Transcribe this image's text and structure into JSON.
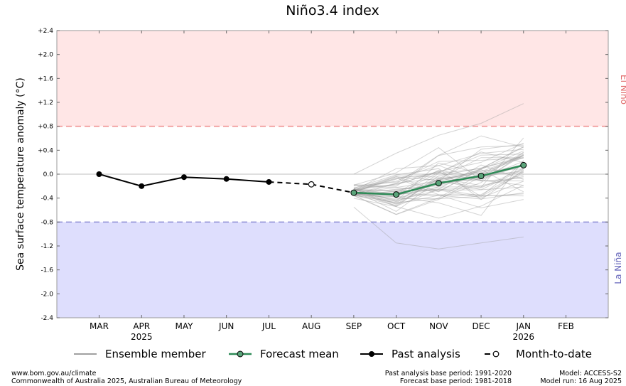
{
  "chart_data": {
    "type": "line",
    "title": "Niño3.4 index",
    "ylabel": "Sea surface temperature anomaly (°C)",
    "xlabel": "",
    "ylim": [
      -2.4,
      2.4
    ],
    "y_ticks": [
      "+2.4",
      "+2.0",
      "+1.6",
      "+1.2",
      "+0.8",
      "+0.4",
      "0.0",
      "-0.4",
      "-0.8",
      "-1.2",
      "-1.6",
      "-2.0",
      "-2.4"
    ],
    "categories": [
      "MAR",
      "APR",
      "MAY",
      "JUN",
      "JUL",
      "AUG",
      "SEP",
      "OCT",
      "NOV",
      "DEC",
      "JAN",
      "FEB"
    ],
    "year_labels": [
      {
        "month": "APR",
        "year": "2025"
      },
      {
        "month": "JAN",
        "year": "2026"
      }
    ],
    "thresholds": {
      "el_nino": 0.8,
      "la_nina": -0.8
    },
    "region_labels": {
      "el_nino": "El Niño",
      "la_nina": "La Niña"
    },
    "colors": {
      "el_nino_fill": "#ffe6e6",
      "la_nina_fill": "#dedefd",
      "el_nino_line": "#f08c8c",
      "la_nina_line": "#8c8cd4",
      "el_nino_text": "#e06a6a",
      "la_nina_text": "#6666bb",
      "forecast": "#2e8b57",
      "forecast_marker": "#5aa47a",
      "ensemble": "#a0a0a0",
      "past": "#000000"
    },
    "series": [
      {
        "name": "Past analysis",
        "x": [
          "MAR",
          "APR",
          "MAY",
          "JUN",
          "JUL"
        ],
        "values": [
          0.0,
          -0.2,
          -0.05,
          -0.08,
          -0.13
        ]
      },
      {
        "name": "Month-to-date",
        "x": [
          "AUG"
        ],
        "values": [
          -0.17
        ]
      },
      {
        "name": "Forecast mean",
        "x": [
          "SEP",
          "OCT",
          "NOV",
          "DEC",
          "JAN"
        ],
        "values": [
          -0.31,
          -0.34,
          -0.15,
          -0.03,
          0.15
        ]
      }
    ],
    "ensemble_range": {
      "x": [
        "SEP",
        "OCT",
        "NOV",
        "DEC",
        "JAN"
      ],
      "min": [
        -0.55,
        -1.15,
        -1.25,
        -1.15,
        -1.05
      ],
      "max": [
        0.0,
        0.35,
        0.65,
        0.85,
        1.18
      ]
    },
    "legend": {
      "placement": "bottom",
      "entries": [
        "Ensemble member",
        "Forecast mean",
        "Past analysis",
        "Month-to-date"
      ]
    },
    "grid": false
  },
  "footer": {
    "left_line1": "www.bom.gov.au/climate",
    "left_line2": "Commonwealth of Australia 2025, Australian Bureau of Meteorology",
    "mid_line1": "Past analysis base period: 1991-2020",
    "mid_line2": "Forecast base period: 1981-2018",
    "right_line1": "Model: ACCESS-S2",
    "right_line2": "Model run: 16 Aug 2025"
  }
}
